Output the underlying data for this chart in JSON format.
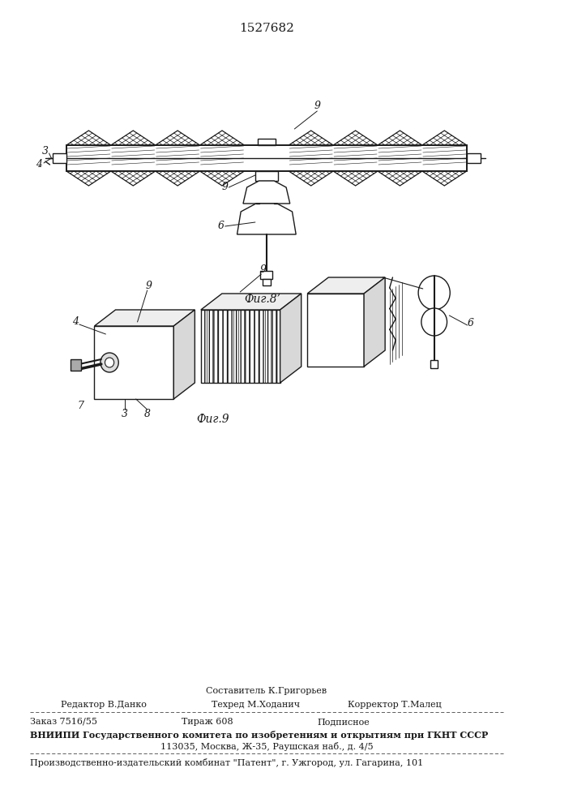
{
  "title": "1527682",
  "fig8_label": "Фиг.8’",
  "fig9_label": "Фиг.9",
  "footer_composer": "Составитель К.Григорьев",
  "footer_line1_col1": "Редактор В.Данко",
  "footer_line1_col2": "Техред М.Ходанич",
  "footer_line1_col3": "Корректор Т.Малец",
  "footer_line2_col1": "Заказ 7516/55",
  "footer_line2_col2": "Тираж 608",
  "footer_line2_col3": "Подписное",
  "footer_line3": "ВНИИПИ Государственного комитета по изобретениям и открытиям при ГКНТ СССР",
  "footer_line4": "113035, Москва, Ж-35, Раушская наб., д. 4/5",
  "footer_line5": "Производственно-издательский комбинат \"Патент\", г. Ужгород, ул. Гагарина, 101",
  "bg_color": "#ffffff",
  "line_color": "#1a1a1a"
}
